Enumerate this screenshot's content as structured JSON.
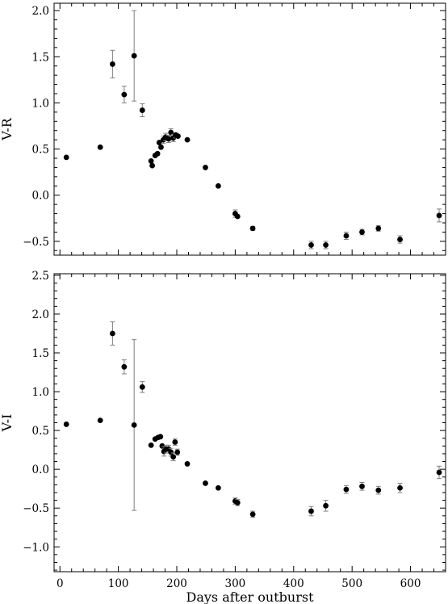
{
  "chart_data": [
    {
      "type": "scatter",
      "ylabel": "V-R",
      "xlabel": "",
      "xlim": [
        -10,
        660
      ],
      "ylim": [
        -0.65,
        2.08
      ],
      "xticks": [
        0,
        100,
        200,
        300,
        400,
        500,
        600
      ],
      "yticks": [
        -0.5,
        0.0,
        0.5,
        1.0,
        1.5,
        2.0
      ],
      "ytick_labels": [
        "−0.5",
        "0.0",
        "0.5",
        "1.0",
        "1.5",
        "2.0"
      ],
      "marker_color": "#000000",
      "errorbar_color": "#808080",
      "points": [
        {
          "x": 11,
          "y": 0.41,
          "err": 0
        },
        {
          "x": 69,
          "y": 0.52,
          "err": 0
        },
        {
          "x": 90,
          "y": 1.42,
          "err": 0.15
        },
        {
          "x": 110,
          "y": 1.09,
          "err": 0.09
        },
        {
          "x": 127,
          "y": 1.51,
          "err": 0.49
        },
        {
          "x": 141,
          "y": 0.92,
          "err": 0.07
        },
        {
          "x": 156,
          "y": 0.37,
          "err": 0
        },
        {
          "x": 158,
          "y": 0.32,
          "err": 0
        },
        {
          "x": 163,
          "y": 0.43,
          "err": 0
        },
        {
          "x": 167,
          "y": 0.45,
          "err": 0
        },
        {
          "x": 170,
          "y": 0.57,
          "err": 0
        },
        {
          "x": 173,
          "y": 0.52,
          "err": 0
        },
        {
          "x": 177,
          "y": 0.6,
          "err": 0.04
        },
        {
          "x": 181,
          "y": 0.63,
          "err": 0.04
        },
        {
          "x": 186,
          "y": 0.61,
          "err": 0.04
        },
        {
          "x": 190,
          "y": 0.68,
          "err": 0.04
        },
        {
          "x": 194,
          "y": 0.62,
          "err": 0.04
        },
        {
          "x": 198,
          "y": 0.65,
          "err": 0.03
        },
        {
          "x": 202,
          "y": 0.64,
          "err": 0
        },
        {
          "x": 218,
          "y": 0.6,
          "err": 0
        },
        {
          "x": 249,
          "y": 0.3,
          "err": 0
        },
        {
          "x": 271,
          "y": 0.1,
          "err": 0
        },
        {
          "x": 300,
          "y": -0.2,
          "err": 0.04
        },
        {
          "x": 304,
          "y": -0.23,
          "err": 0
        },
        {
          "x": 330,
          "y": -0.36,
          "err": 0.02
        },
        {
          "x": 430,
          "y": -0.54,
          "err": 0.04
        },
        {
          "x": 455,
          "y": -0.54,
          "err": 0.04
        },
        {
          "x": 490,
          "y": -0.44,
          "err": 0.04
        },
        {
          "x": 517,
          "y": -0.4,
          "err": 0.03
        },
        {
          "x": 545,
          "y": -0.36,
          "err": 0.03
        },
        {
          "x": 582,
          "y": -0.48,
          "err": 0.04
        },
        {
          "x": 649,
          "y": -0.22,
          "err": 0.07
        }
      ]
    },
    {
      "type": "scatter",
      "ylabel": "V-I",
      "xlabel": "Days after outburst",
      "xlim": [
        -10,
        660
      ],
      "ylim": [
        -1.32,
        2.52
      ],
      "xticks": [
        0,
        100,
        200,
        300,
        400,
        500,
        600
      ],
      "yticks": [
        -1.0,
        -0.5,
        0.0,
        0.5,
        1.0,
        1.5,
        2.0,
        2.5
      ],
      "ytick_labels": [
        "−1.0",
        "−0.5",
        "0.0",
        "0.5",
        "1.0",
        "1.5",
        "2.0",
        "2.5"
      ],
      "marker_color": "#000000",
      "errorbar_color": "#808080",
      "points": [
        {
          "x": 11,
          "y": 0.58,
          "err": 0
        },
        {
          "x": 69,
          "y": 0.63,
          "err": 0
        },
        {
          "x": 90,
          "y": 1.75,
          "err": 0.15
        },
        {
          "x": 110,
          "y": 1.32,
          "err": 0.09
        },
        {
          "x": 127,
          "y": 0.57,
          "err": 1.1
        },
        {
          "x": 141,
          "y": 1.06,
          "err": 0.07
        },
        {
          "x": 156,
          "y": 0.31,
          "err": 0
        },
        {
          "x": 163,
          "y": 0.39,
          "err": 0
        },
        {
          "x": 168,
          "y": 0.41,
          "err": 0
        },
        {
          "x": 172,
          "y": 0.42,
          "err": 0
        },
        {
          "x": 175,
          "y": 0.3,
          "err": 0
        },
        {
          "x": 178,
          "y": 0.23,
          "err": 0.06
        },
        {
          "x": 182,
          "y": 0.26,
          "err": 0.05
        },
        {
          "x": 186,
          "y": 0.26,
          "err": 0.05
        },
        {
          "x": 190,
          "y": 0.22,
          "err": 0.05
        },
        {
          "x": 194,
          "y": 0.16,
          "err": 0.05
        },
        {
          "x": 197,
          "y": 0.35,
          "err": 0.04
        },
        {
          "x": 201,
          "y": 0.22,
          "err": 0.04
        },
        {
          "x": 218,
          "y": 0.07,
          "err": 0
        },
        {
          "x": 249,
          "y": -0.18,
          "err": 0
        },
        {
          "x": 271,
          "y": -0.24,
          "err": 0
        },
        {
          "x": 300,
          "y": -0.41,
          "err": 0.04
        },
        {
          "x": 304,
          "y": -0.43,
          "err": 0.04
        },
        {
          "x": 330,
          "y": -0.58,
          "err": 0.04
        },
        {
          "x": 430,
          "y": -0.54,
          "err": 0.06
        },
        {
          "x": 455,
          "y": -0.47,
          "err": 0.07
        },
        {
          "x": 490,
          "y": -0.26,
          "err": 0.05
        },
        {
          "x": 517,
          "y": -0.22,
          "err": 0.05
        },
        {
          "x": 545,
          "y": -0.27,
          "err": 0.05
        },
        {
          "x": 582,
          "y": -0.24,
          "err": 0.06
        },
        {
          "x": 649,
          "y": -0.04,
          "err": 0.08
        }
      ]
    }
  ]
}
